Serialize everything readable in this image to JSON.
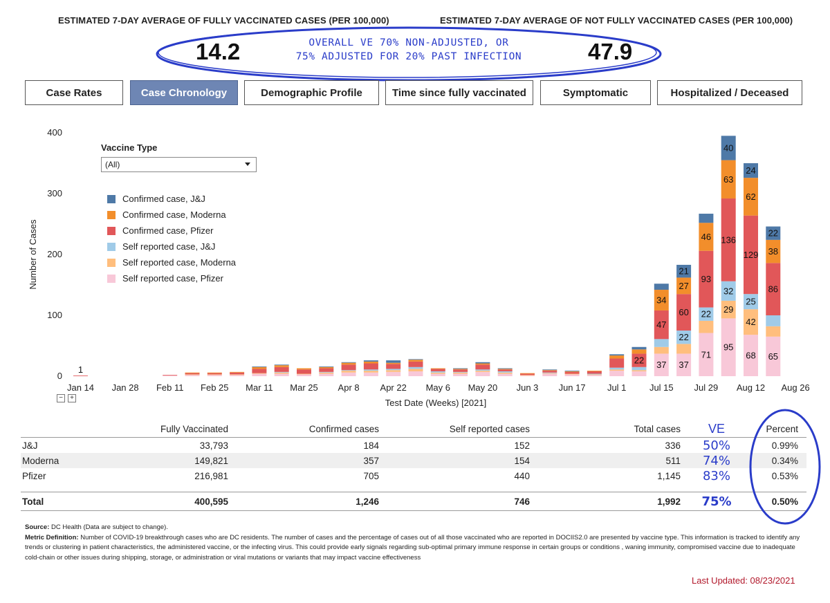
{
  "header": {
    "left_title": "ESTIMATED 7-DAY AVERAGE OF FULLY VACCINATED CASES (PER 100,000)",
    "right_title": "ESTIMATED 7-DAY AVERAGE OF NOT FULLY VACCINATED CASES (PER 100,000)",
    "left_value": "14.2",
    "right_value": "47.9",
    "annotation_line1": "Overall VE 70% non-adjusted, or",
    "annotation_line2": "75% adjusted for 20% past infection",
    "annotation_color": "#2a3cc9"
  },
  "tabs": [
    {
      "label": "Case Rates",
      "active": false
    },
    {
      "label": "Case Chronology",
      "active": true
    },
    {
      "label": "Demographic Profile",
      "active": false
    },
    {
      "label": "Time since fully vaccinated",
      "active": false
    },
    {
      "label": "Symptomatic",
      "active": false
    },
    {
      "label": "Hospitalized / Deceased",
      "active": false
    }
  ],
  "filter": {
    "title": "Vaccine Type",
    "selected": "(All)"
  },
  "colors": {
    "Confirmed case, J&J": "#4e79a7",
    "Confirmed case, Moderna": "#f28e2b",
    "Confirmed case, Pfizer": "#e15759",
    "Self reported case, J&J": "#a0cbe8",
    "Self reported case, Moderna": "#ffbe7d",
    "Self reported case, Pfizer": "#f8c8d8",
    "active_tab": "#6e86b4",
    "updated": "#b2182b"
  },
  "chart_data": {
    "type": "bar",
    "stacked": true,
    "xlabel": "Test Date (Weeks) [2021]",
    "ylabel": "Number of Cases",
    "ylim": [
      0,
      400
    ],
    "yticks": [
      0,
      100,
      200,
      300,
      400
    ],
    "x_tick_labels": [
      "Jan 14",
      "Jan 28",
      "Feb 11",
      "Feb 25",
      "Mar 11",
      "Mar 25",
      "Apr 8",
      "Apr 22",
      "May 6",
      "May 20",
      "Jun 3",
      "Jun 17",
      "Jul 1",
      "Jul 15",
      "Jul 29",
      "Aug 12",
      "Aug 26"
    ],
    "categories": [
      "Jan 14",
      "Jan 21",
      "Jan 28",
      "Feb 4",
      "Feb 11",
      "Feb 18",
      "Feb 25",
      "Mar 4",
      "Mar 11",
      "Mar 18",
      "Mar 25",
      "Apr 1",
      "Apr 8",
      "Apr 15",
      "Apr 22",
      "Apr 29",
      "May 6",
      "May 13",
      "May 20",
      "May 27",
      "Jun 3",
      "Jun 10",
      "Jun 17",
      "Jun 24",
      "Jul 1",
      "Jul 8",
      "Jul 15",
      "Jul 22",
      "Jul 29",
      "Aug 5",
      "Aug 12",
      "Aug 19"
    ],
    "series": [
      {
        "name": "Self reported case, Pfizer",
        "values": [
          0,
          0,
          0,
          0,
          1,
          2,
          2,
          2,
          4,
          4,
          3,
          4,
          6,
          6,
          7,
          8,
          4,
          4,
          7,
          4,
          1,
          4,
          3,
          2,
          9,
          8,
          37,
          37,
          71,
          95,
          68,
          65
        ]
      },
      {
        "name": "Self reported case, Moderna",
        "values": [
          0,
          0,
          0,
          0,
          0,
          1,
          1,
          1,
          1,
          2,
          1,
          2,
          3,
          3,
          3,
          4,
          2,
          2,
          2,
          2,
          1,
          1,
          1,
          1,
          2,
          2,
          11,
          16,
          20,
          29,
          42,
          17
        ]
      },
      {
        "name": "Self reported case, J&J",
        "values": [
          0,
          0,
          0,
          0,
          0,
          0,
          0,
          0,
          0,
          1,
          0,
          1,
          1,
          2,
          2,
          3,
          2,
          1,
          2,
          2,
          0,
          1,
          0,
          1,
          3,
          5,
          13,
          22,
          22,
          32,
          25,
          18
        ]
      },
      {
        "name": "Confirmed case, Pfizer",
        "values": [
          1,
          0,
          0,
          0,
          1,
          2,
          2,
          3,
          7,
          8,
          7,
          6,
          9,
          10,
          8,
          9,
          4,
          4,
          8,
          3,
          2,
          3,
          3,
          4,
          15,
          22,
          47,
          60,
          93,
          136,
          129,
          86
        ]
      },
      {
        "name": "Confirmed case, Moderna",
        "values": [
          0,
          0,
          0,
          0,
          0,
          1,
          1,
          1,
          3,
          3,
          2,
          2,
          3,
          3,
          2,
          3,
          1,
          1,
          2,
          1,
          1,
          1,
          1,
          1,
          5,
          7,
          34,
          27,
          46,
          63,
          62,
          38
        ]
      },
      {
        "name": "Confirmed case, J&J",
        "values": [
          0,
          0,
          0,
          0,
          0,
          0,
          0,
          0,
          1,
          1,
          0,
          1,
          1,
          2,
          4,
          1,
          0,
          1,
          2,
          1,
          0,
          1,
          1,
          0,
          2,
          4,
          10,
          21,
          15,
          40,
          24,
          22
        ]
      }
    ],
    "data_labels": [
      {
        "category": "Jan 14",
        "series": "Confirmed case, Pfizer",
        "text": "1"
      },
      {
        "category": "Jul 8",
        "series": "Confirmed case, Pfizer",
        "text": "22"
      },
      {
        "category": "Jul 15",
        "series": "Self reported case, Pfizer",
        "text": "37"
      },
      {
        "category": "Jul 15",
        "series": "Confirmed case, Pfizer",
        "text": "47"
      },
      {
        "category": "Jul 15",
        "series": "Confirmed case, Moderna",
        "text": "34"
      },
      {
        "category": "Jul 22",
        "series": "Self reported case, Pfizer",
        "text": "37"
      },
      {
        "category": "Jul 22",
        "series": "Self reported case, J&J",
        "text": "22"
      },
      {
        "category": "Jul 22",
        "series": "Confirmed case, Pfizer",
        "text": "60"
      },
      {
        "category": "Jul 22",
        "series": "Confirmed case, Moderna",
        "text": "27"
      },
      {
        "category": "Jul 22",
        "series": "Confirmed case, J&J",
        "text": "21"
      },
      {
        "category": "Jul 29",
        "series": "Self reported case, Pfizer",
        "text": "71"
      },
      {
        "category": "Jul 29",
        "series": "Self reported case, J&J",
        "text": "22"
      },
      {
        "category": "Jul 29",
        "series": "Confirmed case, Pfizer",
        "text": "93"
      },
      {
        "category": "Jul 29",
        "series": "Confirmed case, Moderna",
        "text": "46"
      },
      {
        "category": "Aug 5",
        "series": "Self reported case, Pfizer",
        "text": "95"
      },
      {
        "category": "Aug 5",
        "series": "Self reported case, Moderna",
        "text": "29"
      },
      {
        "category": "Aug 5",
        "series": "Self reported case, J&J",
        "text": "32"
      },
      {
        "category": "Aug 5",
        "series": "Confirmed case, Pfizer",
        "text": "136"
      },
      {
        "category": "Aug 5",
        "series": "Confirmed case, Moderna",
        "text": "63"
      },
      {
        "category": "Aug 5",
        "series": "Confirmed case, J&J",
        "text": "40"
      },
      {
        "category": "Aug 12",
        "series": "Self reported case, Pfizer",
        "text": "68"
      },
      {
        "category": "Aug 12",
        "series": "Self reported case, Moderna",
        "text": "42"
      },
      {
        "category": "Aug 12",
        "series": "Self reported case, J&J",
        "text": "25"
      },
      {
        "category": "Aug 12",
        "series": "Confirmed case, Pfizer",
        "text": "129"
      },
      {
        "category": "Aug 12",
        "series": "Confirmed case, Moderna",
        "text": "62"
      },
      {
        "category": "Aug 12",
        "series": "Confirmed case, J&J",
        "text": "24"
      },
      {
        "category": "Aug 19",
        "series": "Self reported case, Pfizer",
        "text": "65"
      },
      {
        "category": "Aug 19",
        "series": "Confirmed case, Pfizer",
        "text": "86"
      },
      {
        "category": "Aug 19",
        "series": "Confirmed case, Moderna",
        "text": "38"
      },
      {
        "category": "Aug 19",
        "series": "Confirmed case, J&J",
        "text": "22"
      }
    ],
    "legend": [
      "Confirmed case, J&J",
      "Confirmed case, Moderna",
      "Confirmed case, Pfizer",
      "Self reported case, J&J",
      "Self reported case, Moderna",
      "Self reported case, Pfizer"
    ],
    "legend_position": "top-left",
    "grid": false
  },
  "table": {
    "headers": [
      "",
      "Fully Vaccinated",
      "Confirmed cases",
      "Self reported cases",
      "Total cases",
      "VE",
      "Percent"
    ],
    "rows": [
      [
        "J&J",
        "33,793",
        "184",
        "152",
        "336",
        "50%",
        "0.99%"
      ],
      [
        "Moderna",
        "149,821",
        "357",
        "154",
        "511",
        "74%",
        "0.34%"
      ],
      [
        "Pfizer",
        "216,981",
        "705",
        "440",
        "1,145",
        "83%",
        "0.53%"
      ]
    ],
    "total": [
      "Total",
      "400,595",
      "1,246",
      "746",
      "1,992",
      "75%",
      "0.50%"
    ]
  },
  "footer": {
    "source_label": "Source:",
    "source_text": " DC Health (Data are subject to change).",
    "metric_label": "Metric Definition:",
    "metric_text": " Number of COVID-19 breakthrough cases who are DC residents. The number of cases and the percentage of cases out of all those vaccinated who are reported in DOCIIS2.0 are presented by vaccine type. This information is tracked to identify any trends or clustering in patient characteristics, the administered vaccine, or the infecting virus.  This could provide early signals regarding sub-optimal primary immune response in certain groups or conditions , waning immunity, compromised vaccine due to inadequate cold-chain or other issues during shipping, storage, or administration or viral mutations or variants that may impact vaccine effectiveness",
    "last_updated": "Last Updated: 08/23/2021"
  }
}
